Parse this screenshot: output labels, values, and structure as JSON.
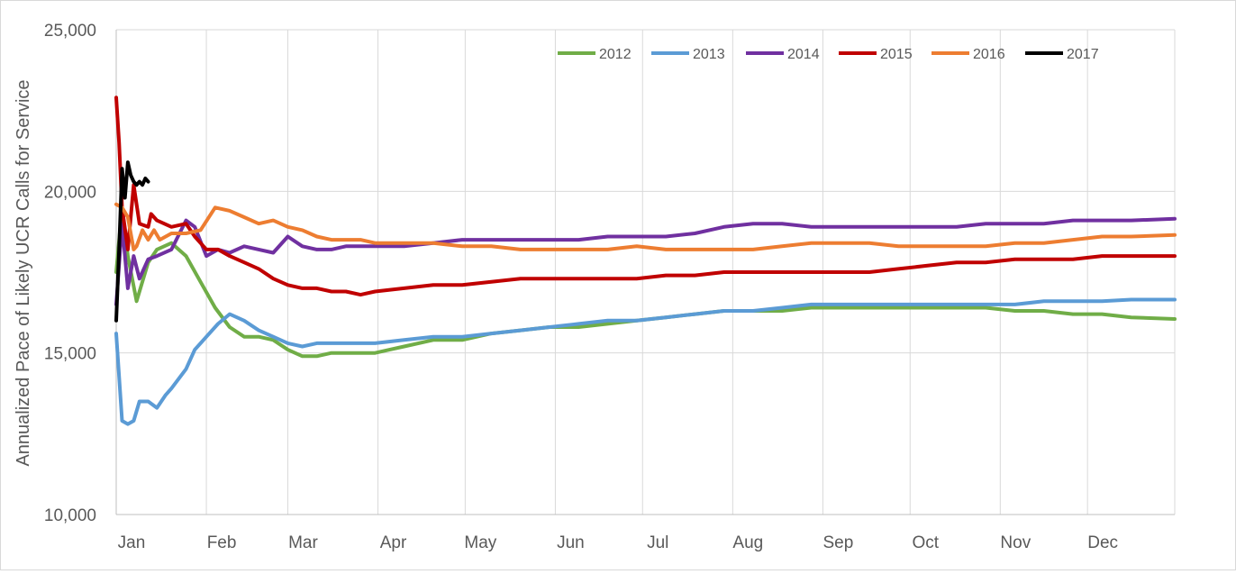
{
  "chart_data": {
    "type": "line",
    "title": "",
    "xlabel": "",
    "ylabel": "Annualized Pace of Likely UCR Calls for Service",
    "ylim": [
      10000,
      25000
    ],
    "yticks": [
      "10,000",
      "15,000",
      "20,000",
      "25,000"
    ],
    "ytick_values": [
      10000,
      15000,
      20000,
      25000
    ],
    "xlim": [
      1,
      365
    ],
    "xtick_labels": [
      "Jan",
      "Feb",
      "Mar",
      "Apr",
      "May",
      "Jun",
      "Jul",
      "Aug",
      "Sep",
      "Oct",
      "Nov",
      "Dec"
    ],
    "xtick_days": [
      1,
      32,
      60,
      91,
      121,
      152,
      182,
      213,
      244,
      274,
      305,
      335
    ],
    "x_unit": "day of year",
    "grid": "vertical and horizontal",
    "legend_position": "top-right",
    "series": [
      {
        "name": "2012",
        "color": "#70ad47",
        "x": [
          1,
          3,
          5,
          8,
          12,
          15,
          20,
          25,
          30,
          35,
          40,
          45,
          50,
          55,
          60,
          65,
          70,
          75,
          80,
          85,
          90,
          95,
          100,
          110,
          120,
          130,
          140,
          150,
          160,
          170,
          180,
          190,
          200,
          210,
          220,
          230,
          240,
          250,
          260,
          270,
          280,
          290,
          300,
          310,
          320,
          330,
          340,
          350,
          365
        ],
        "y": [
          17500,
          19500,
          18000,
          16600,
          17800,
          18200,
          18400,
          18000,
          17200,
          16400,
          15800,
          15500,
          15500,
          15400,
          15100,
          14900,
          14900,
          15000,
          15000,
          15000,
          15000,
          15100,
          15200,
          15400,
          15400,
          15600,
          15700,
          15800,
          15800,
          15900,
          16000,
          16100,
          16200,
          16300,
          16300,
          16300,
          16400,
          16400,
          16400,
          16400,
          16400,
          16400,
          16400,
          16300,
          16300,
          16200,
          16200,
          16100,
          16050
        ]
      },
      {
        "name": "2013",
        "color": "#5b9bd5",
        "x": [
          1,
          3,
          5,
          7,
          9,
          12,
          15,
          18,
          20,
          25,
          28,
          32,
          36,
          40,
          45,
          50,
          55,
          60,
          65,
          70,
          75,
          80,
          85,
          90,
          100,
          110,
          120,
          130,
          140,
          150,
          160,
          170,
          180,
          190,
          200,
          210,
          220,
          230,
          240,
          250,
          260,
          270,
          280,
          290,
          300,
          310,
          320,
          330,
          340,
          350,
          365
        ],
        "y": [
          15600,
          12900,
          12800,
          12900,
          13500,
          13500,
          13300,
          13700,
          13900,
          14500,
          15100,
          15500,
          15900,
          16200,
          16000,
          15700,
          15500,
          15300,
          15200,
          15300,
          15300,
          15300,
          15300,
          15300,
          15400,
          15500,
          15500,
          15600,
          15700,
          15800,
          15900,
          16000,
          16000,
          16100,
          16200,
          16300,
          16300,
          16400,
          16500,
          16500,
          16500,
          16500,
          16500,
          16500,
          16500,
          16500,
          16600,
          16600,
          16600,
          16650,
          16650
        ]
      },
      {
        "name": "2014",
        "color": "#7030a0",
        "x": [
          1,
          3,
          5,
          7,
          9,
          12,
          15,
          20,
          25,
          28,
          32,
          36,
          40,
          45,
          50,
          55,
          60,
          65,
          70,
          75,
          80,
          85,
          90,
          100,
          110,
          120,
          130,
          140,
          150,
          160,
          170,
          180,
          190,
          200,
          210,
          220,
          230,
          240,
          250,
          260,
          270,
          280,
          290,
          300,
          310,
          320,
          330,
          340,
          350,
          365
        ],
        "y": [
          16500,
          19000,
          17000,
          18000,
          17300,
          17900,
          18000,
          18200,
          19100,
          18900,
          18000,
          18200,
          18100,
          18300,
          18200,
          18100,
          18600,
          18300,
          18200,
          18200,
          18300,
          18300,
          18300,
          18300,
          18400,
          18500,
          18500,
          18500,
          18500,
          18500,
          18600,
          18600,
          18600,
          18700,
          18900,
          19000,
          19000,
          18900,
          18900,
          18900,
          18900,
          18900,
          18900,
          19000,
          19000,
          19000,
          19100,
          19100,
          19100,
          19150
        ]
      },
      {
        "name": "2015",
        "color": "#c00000",
        "x": [
          1,
          2,
          3,
          5,
          7,
          9,
          12,
          13,
          15,
          20,
          25,
          28,
          32,
          36,
          40,
          45,
          50,
          55,
          60,
          65,
          70,
          75,
          80,
          85,
          90,
          100,
          110,
          120,
          130,
          140,
          150,
          160,
          170,
          180,
          190,
          200,
          210,
          220,
          230,
          240,
          250,
          260,
          270,
          280,
          290,
          300,
          310,
          320,
          330,
          340,
          350,
          365
        ],
        "y": [
          22900,
          21500,
          19500,
          18200,
          20200,
          19000,
          18900,
          19300,
          19100,
          18900,
          19000,
          18600,
          18200,
          18200,
          18000,
          17800,
          17600,
          17300,
          17100,
          17000,
          17000,
          16900,
          16900,
          16800,
          16900,
          17000,
          17100,
          17100,
          17200,
          17300,
          17300,
          17300,
          17300,
          17300,
          17400,
          17400,
          17500,
          17500,
          17500,
          17500,
          17500,
          17500,
          17600,
          17700,
          17800,
          17800,
          17900,
          17900,
          17900,
          18000,
          18000,
          18000
        ]
      },
      {
        "name": "2016",
        "color": "#ed7d31",
        "x": [
          1,
          3,
          5,
          7,
          8,
          10,
          12,
          14,
          16,
          20,
          25,
          30,
          35,
          40,
          45,
          50,
          55,
          60,
          65,
          70,
          75,
          80,
          85,
          90,
          100,
          110,
          120,
          130,
          140,
          150,
          160,
          170,
          180,
          190,
          200,
          210,
          220,
          230,
          240,
          250,
          260,
          270,
          280,
          290,
          300,
          310,
          320,
          330,
          340,
          350,
          365
        ],
        "y": [
          19600,
          19500,
          19200,
          18200,
          18300,
          18800,
          18500,
          18800,
          18500,
          18700,
          18700,
          18800,
          19500,
          19400,
          19200,
          19000,
          19100,
          18900,
          18800,
          18600,
          18500,
          18500,
          18500,
          18400,
          18400,
          18400,
          18300,
          18300,
          18200,
          18200,
          18200,
          18200,
          18300,
          18200,
          18200,
          18200,
          18200,
          18300,
          18400,
          18400,
          18400,
          18300,
          18300,
          18300,
          18300,
          18400,
          18400,
          18500,
          18600,
          18600,
          18650
        ]
      },
      {
        "name": "2017",
        "color": "#000000",
        "x": [
          1,
          2,
          3,
          4,
          5,
          6,
          7,
          8,
          9,
          10,
          11,
          12
        ],
        "y": [
          16000,
          18200,
          20700,
          19800,
          20900,
          20500,
          20300,
          20200,
          20300,
          20200,
          20400,
          20300
        ]
      }
    ]
  }
}
